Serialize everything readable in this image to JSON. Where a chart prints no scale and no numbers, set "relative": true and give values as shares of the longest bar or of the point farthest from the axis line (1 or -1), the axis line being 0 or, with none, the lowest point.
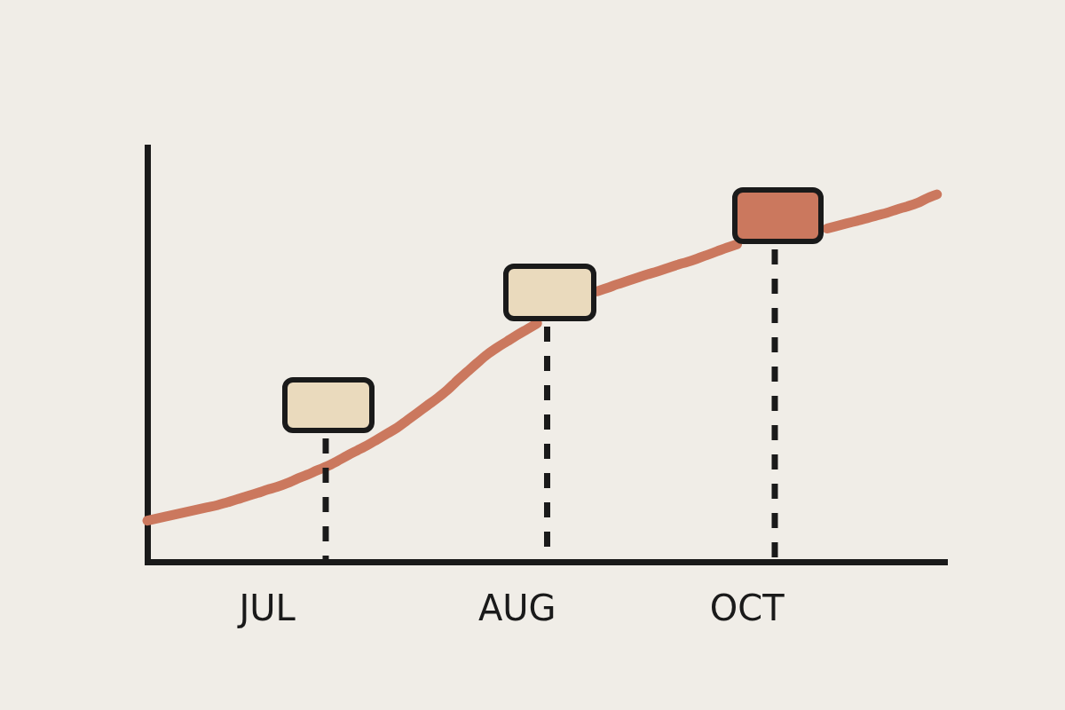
{
  "chart_data": {
    "type": "line",
    "relative": true,
    "categories": [
      null,
      null,
      null,
      null,
      null,
      null,
      null,
      null,
      null,
      null,
      null,
      null,
      "JUL",
      null,
      null,
      null,
      null,
      null,
      null,
      null,
      null,
      null,
      null,
      null,
      null,
      null,
      null,
      null,
      null,
      null,
      null,
      null,
      null,
      null,
      null,
      null,
      null,
      "AUG",
      null,
      null,
      null,
      null,
      null,
      null,
      null,
      null,
      null,
      null,
      null,
      null,
      null,
      null,
      null,
      null,
      null,
      null,
      null,
      null,
      null,
      null,
      "OCT",
      null,
      null,
      null,
      null,
      null,
      null,
      null,
      null,
      null,
      null,
      null,
      null,
      null,
      null,
      null,
      null,
      null,
      null,
      null,
      null
    ],
    "series": [
      {
        "color": "#cb785e",
        "values": [
          0.112,
          0.118,
          0.124,
          0.13,
          0.136,
          0.142,
          0.148,
          0.154,
          0.162,
          0.17,
          0.179,
          0.187,
          0.196,
          0.204,
          0.214,
          0.226,
          0.237,
          0.249,
          0.26,
          0.274,
          0.289,
          0.303,
          0.317,
          0.333,
          0.349,
          0.365,
          0.385,
          0.405,
          0.425,
          0.445,
          0.467,
          0.493,
          0.517,
          0.541,
          0.564,
          0.583,
          0.6,
          0.617,
          0.633,
          0.649,
          null,
          null,
          null,
          null,
          null,
          0.736,
          0.745,
          0.755,
          0.764,
          0.773,
          0.782,
          0.79,
          0.799,
          0.808,
          0.816,
          0.825,
          0.835,
          0.845,
          0.855,
          0.864,
          null,
          null,
          null,
          null,
          null,
          null,
          null,
          null,
          0.907,
          0.914,
          0.921,
          0.928,
          0.935,
          0.943,
          0.95,
          0.959,
          0.967,
          0.976,
          0.989,
          1,
          null
        ]
      }
    ]
  }
}
